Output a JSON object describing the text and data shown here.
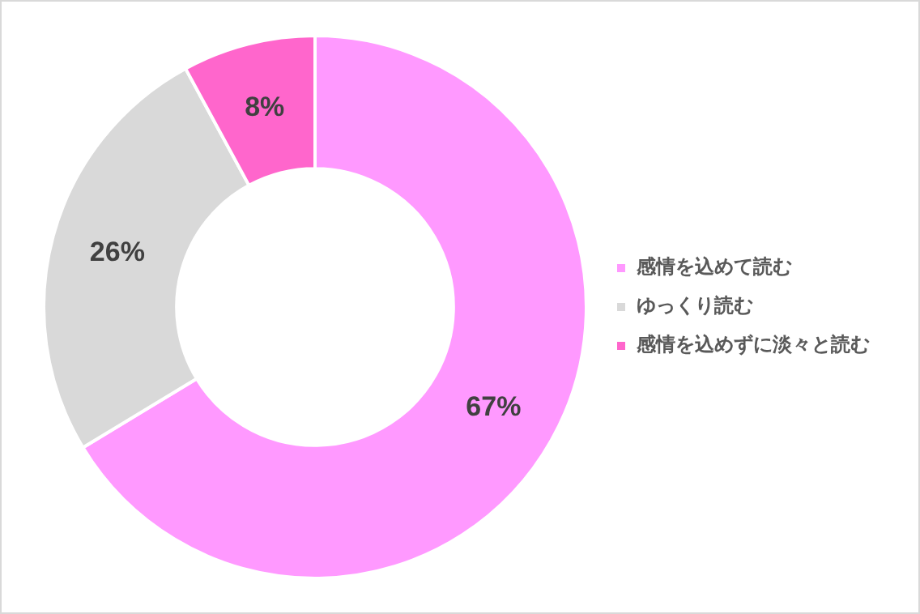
{
  "chart_data": {
    "type": "donut",
    "categories": [
      "感情を込めて読む",
      "ゆっくり読む",
      "感情を込めずに淡々と読む"
    ],
    "values": [
      67,
      26,
      8
    ],
    "colors": [
      "#ff99ff",
      "#d9d9d9",
      "#ff66cc"
    ],
    "value_labels": [
      "67%",
      "26%",
      "8%"
    ],
    "legend": "right"
  }
}
